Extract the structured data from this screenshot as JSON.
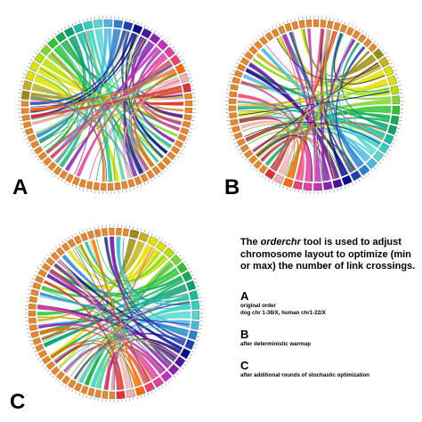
{
  "panels": [
    {
      "id": "a",
      "letter": "A",
      "seed": 7
    },
    {
      "id": "b",
      "letter": "B",
      "seed": 23
    },
    {
      "id": "c",
      "letter": "C",
      "seed": 51
    }
  ],
  "description": {
    "intro_prefix": "The ",
    "tool_name": "orderchr",
    "intro_suffix": " tool is used to adjust chromosome layout to optimize (min or max) the number of link crossings.",
    "items": [
      {
        "letter": "A",
        "lines": [
          "original order",
          "dog chr 1-38/X, human chr1-22/X"
        ]
      },
      {
        "letter": "B",
        "lines": [
          "after deterministic warmup"
        ]
      },
      {
        "letter": "C",
        "lines": [
          "after additional rounds of stochastic optimization"
        ]
      }
    ]
  },
  "colors": {
    "dog_ideogram": "#e8862c",
    "human_palette": [
      "#9a8e10",
      "#c7b21a",
      "#e4e000",
      "#dde000",
      "#b8e000",
      "#7ed62a",
      "#2cc62a",
      "#10b050",
      "#0aa070",
      "#10c0a0",
      "#30d0c0",
      "#50d8d0",
      "#48b8e0",
      "#2a80d0",
      "#2040b0",
      "#0a0a90",
      "#5010a0",
      "#9020b0",
      "#c030c0",
      "#e040a0",
      "#ef4070",
      "#ff6a00",
      "#f0b0b0",
      "#e03030"
    ]
  }
}
